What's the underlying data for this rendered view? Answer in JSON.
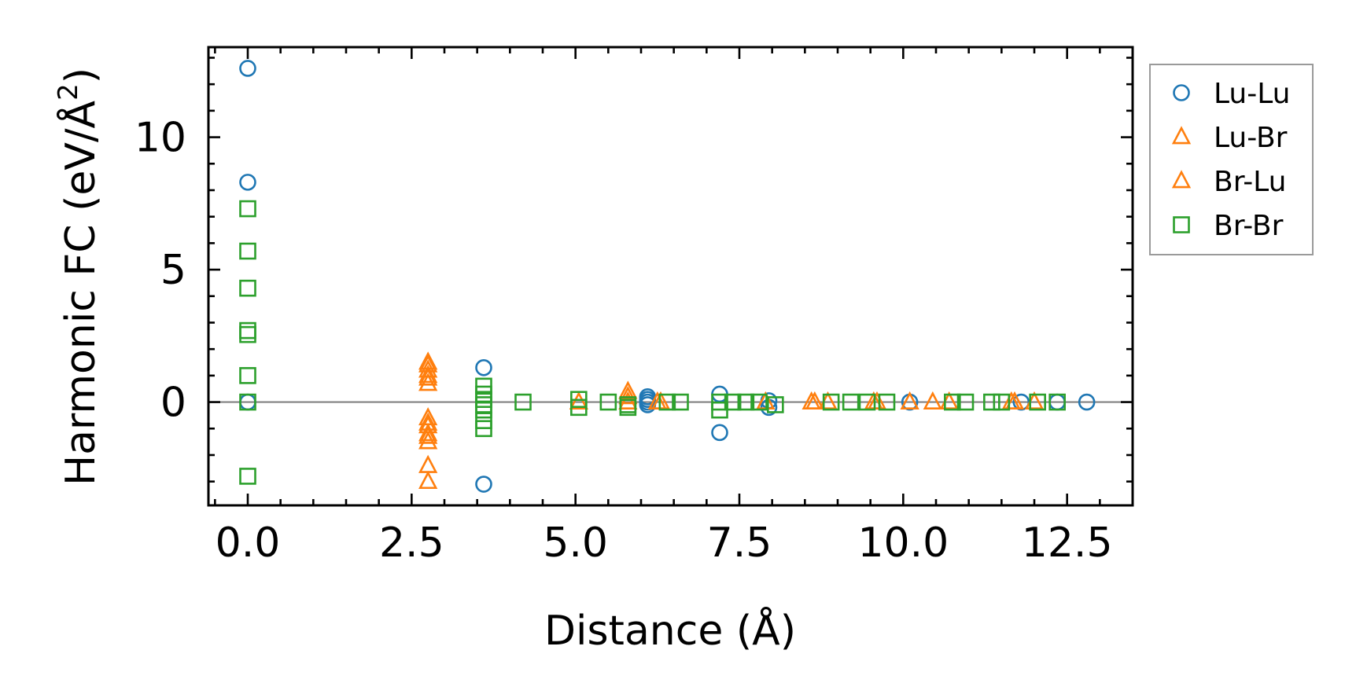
{
  "chart_data": {
    "type": "scatter",
    "xlabel": "Distance (Å)",
    "ylabel_main": "Harmonic FC (eV/Å",
    "ylabel_sup": "2",
    "ylabel_close": ")",
    "xlim": [
      -0.6,
      13.5
    ],
    "ylim": [
      -3.9,
      13.4
    ],
    "x_ticks": [
      0.0,
      2.5,
      5.0,
      7.5,
      10.0,
      12.5
    ],
    "x_tick_labels": [
      "0.0",
      "2.5",
      "5.0",
      "7.5",
      "10.0",
      "12.5"
    ],
    "y_ticks": [
      0,
      5,
      10
    ],
    "y_tick_labels": [
      "0",
      "5",
      "10"
    ],
    "zero_line": true,
    "grid": false,
    "legend_position": "outside-right-top",
    "series": [
      {
        "name": "Lu-Lu",
        "marker": "circle",
        "color": "#1f77b4",
        "points": [
          [
            0.0,
            12.6
          ],
          [
            0.0,
            8.3
          ],
          [
            0.0,
            0.0
          ],
          [
            3.6,
            1.3
          ],
          [
            3.6,
            -3.1
          ],
          [
            6.1,
            0.2
          ],
          [
            6.1,
            0.1
          ],
          [
            6.1,
            0.0
          ],
          [
            6.1,
            -0.1
          ],
          [
            7.2,
            0.3
          ],
          [
            7.2,
            -1.15
          ],
          [
            7.95,
            0.05
          ],
          [
            7.95,
            -0.2
          ],
          [
            10.1,
            0.0
          ],
          [
            11.8,
            0.0
          ],
          [
            12.35,
            0.0
          ],
          [
            12.8,
            0.0
          ]
        ]
      },
      {
        "name": "Lu-Br",
        "marker": "triangle",
        "color": "#ff7f0e",
        "points": [
          [
            2.75,
            1.5
          ],
          [
            2.75,
            1.2
          ],
          [
            2.75,
            0.9
          ],
          [
            2.75,
            0.7
          ],
          [
            2.75,
            -0.6
          ],
          [
            2.75,
            -0.9
          ],
          [
            2.75,
            -1.2
          ],
          [
            2.75,
            -1.5
          ],
          [
            2.75,
            -2.4
          ],
          [
            2.75,
            -3.0
          ],
          [
            5.05,
            0.0
          ],
          [
            5.8,
            0.4
          ],
          [
            5.8,
            0.0
          ],
          [
            6.25,
            0.0
          ],
          [
            7.9,
            0.0
          ],
          [
            8.6,
            0.0
          ],
          [
            8.85,
            0.0
          ],
          [
            9.55,
            0.0
          ],
          [
            10.1,
            0.0
          ],
          [
            10.45,
            0.0
          ],
          [
            10.7,
            0.0
          ],
          [
            11.65,
            0.0
          ],
          [
            12.0,
            0.0
          ]
        ]
      },
      {
        "name": "Br-Lu",
        "marker": "triangle",
        "color": "#ff7f0e",
        "points": [
          [
            2.75,
            1.4
          ],
          [
            2.75,
            1.0
          ],
          [
            2.75,
            -0.8
          ],
          [
            2.75,
            -1.3
          ],
          [
            5.8,
            0.2
          ],
          [
            6.3,
            0.0
          ],
          [
            8.65,
            0.0
          ],
          [
            9.6,
            0.0
          ],
          [
            11.7,
            0.0
          ]
        ]
      },
      {
        "name": "Br-Br",
        "marker": "square",
        "color": "#2ca02c",
        "points": [
          [
            0.0,
            7.3
          ],
          [
            0.0,
            5.7
          ],
          [
            0.0,
            4.3
          ],
          [
            0.0,
            2.7
          ],
          [
            0.0,
            2.55
          ],
          [
            0.0,
            1.0
          ],
          [
            0.0,
            0.0
          ],
          [
            0.0,
            -2.8
          ],
          [
            3.6,
            0.6
          ],
          [
            3.6,
            0.3
          ],
          [
            3.6,
            0.1
          ],
          [
            3.6,
            -0.1
          ],
          [
            3.6,
            -0.3
          ],
          [
            3.6,
            -0.7
          ],
          [
            3.6,
            -1.0
          ],
          [
            4.2,
            0.0
          ],
          [
            5.05,
            0.1
          ],
          [
            5.05,
            -0.2
          ],
          [
            5.5,
            0.0
          ],
          [
            5.8,
            -0.1
          ],
          [
            5.8,
            -0.2
          ],
          [
            6.4,
            0.0
          ],
          [
            6.6,
            0.0
          ],
          [
            7.2,
            0.0
          ],
          [
            7.2,
            -0.3
          ],
          [
            7.4,
            0.0
          ],
          [
            7.6,
            0.0
          ],
          [
            7.8,
            0.0
          ],
          [
            8.05,
            -0.1
          ],
          [
            8.9,
            0.0
          ],
          [
            9.2,
            0.0
          ],
          [
            9.45,
            0.0
          ],
          [
            9.75,
            0.0
          ],
          [
            10.75,
            0.0
          ],
          [
            10.95,
            0.0
          ],
          [
            11.35,
            0.0
          ],
          [
            11.5,
            0.0
          ],
          [
            12.05,
            0.0
          ],
          [
            12.35,
            0.0
          ]
        ]
      }
    ]
  }
}
